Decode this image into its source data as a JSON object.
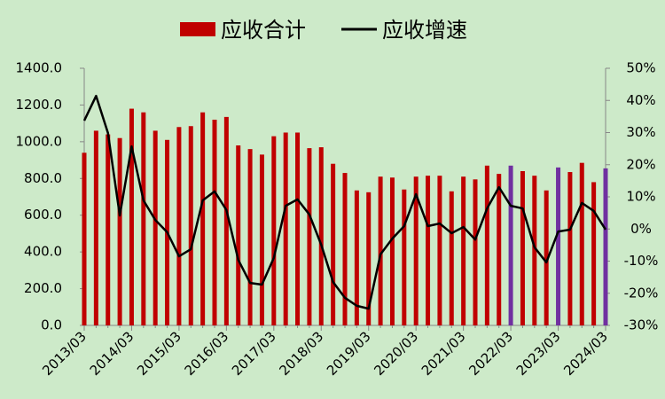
{
  "chart_data": {
    "type": "bar-line",
    "categories": [
      "2013/03",
      null,
      null,
      null,
      "2014/03",
      null,
      null,
      null,
      "2015/03",
      null,
      null,
      null,
      "2016/03",
      null,
      null,
      null,
      "2017/03",
      null,
      null,
      null,
      "2018/03",
      null,
      null,
      null,
      "2019/03",
      null,
      null,
      null,
      "2020/03",
      null,
      null,
      null,
      "2021/03",
      null,
      null,
      null,
      "2022/03",
      null,
      null,
      null,
      "2023/03",
      null,
      null,
      null,
      "2024/03"
    ],
    "series": [
      {
        "name": "应收合计",
        "type": "bar",
        "color": "#c00000",
        "colors": [
          "#c00000",
          "#c00000",
          "#c00000",
          "#c00000",
          "#c00000",
          "#c00000",
          "#c00000",
          "#c00000",
          "#c00000",
          "#c00000",
          "#c00000",
          "#c00000",
          "#c00000",
          "#c00000",
          "#c00000",
          "#c00000",
          "#c00000",
          "#c00000",
          "#c00000",
          "#c00000",
          "#c00000",
          "#c00000",
          "#c00000",
          "#c00000",
          "#c00000",
          "#c00000",
          "#c00000",
          "#c00000",
          "#c00000",
          "#c00000",
          "#c00000",
          "#c00000",
          "#c00000",
          "#c00000",
          "#c00000",
          "#c00000",
          "#7030a0",
          "#c00000",
          "#c00000",
          "#c00000",
          "#7030a0",
          "#c00000",
          "#c00000",
          "#c00000",
          "#7030a0"
        ],
        "values": [
          940,
          1060,
          1040,
          1020,
          1180,
          1160,
          1060,
          1010,
          1080,
          1085,
          1160,
          1120,
          1135,
          980,
          960,
          930,
          1030,
          1050,
          1050,
          965,
          970,
          880,
          830,
          735,
          725,
          810,
          805,
          740,
          810,
          815,
          815,
          730,
          810,
          795,
          870,
          825,
          870,
          840,
          815,
          735,
          860,
          835,
          885,
          780,
          855
        ]
      },
      {
        "name": "应收增速",
        "type": "line",
        "axis": "y2",
        "color": "#000000",
        "values": [
          33.7,
          41.4,
          29.9,
          4.2,
          25.7,
          8.9,
          2.8,
          -1.0,
          -8.5,
          -6.3,
          8.9,
          11.7,
          5.9,
          -9.6,
          -16.8,
          -17.3,
          -9.0,
          7.2,
          9.2,
          4.5,
          -4.9,
          -16.5,
          -21.4,
          -23.9,
          -24.8,
          -7.9,
          -3.0,
          0.9,
          10.8,
          0.9,
          1.7,
          -1.3,
          0.6,
          -3.3,
          6.4,
          13.0,
          7.2,
          6.4,
          -5.7,
          -10.4,
          -0.8,
          -0.2,
          8.1,
          5.6,
          -0.2
        ]
      }
    ],
    "ylim": [
      0,
      1400
    ],
    "yticks": [
      {
        "value": 0,
        "label": "0.0"
      },
      {
        "value": 200,
        "label": "200.0"
      },
      {
        "value": 400,
        "label": "400.0"
      },
      {
        "value": 600,
        "label": "600.0"
      },
      {
        "value": 800,
        "label": "800.0"
      },
      {
        "value": 1000,
        "label": "1000.0"
      },
      {
        "value": 1200,
        "label": "1200.0"
      },
      {
        "value": 1400,
        "label": "1400.0"
      }
    ],
    "y2lim": [
      -30,
      50
    ],
    "y2ticks": [
      {
        "value": -30,
        "label": "-30%"
      },
      {
        "value": -20,
        "label": "-20%"
      },
      {
        "value": -10,
        "label": "-10%"
      },
      {
        "value": 0,
        "label": "0%"
      },
      {
        "value": 10,
        "label": "10%"
      },
      {
        "value": 20,
        "label": "20%"
      },
      {
        "value": 30,
        "label": "30%"
      },
      {
        "value": 40,
        "label": "40%"
      },
      {
        "value": 50,
        "label": "50%"
      }
    ],
    "legend": "top"
  }
}
